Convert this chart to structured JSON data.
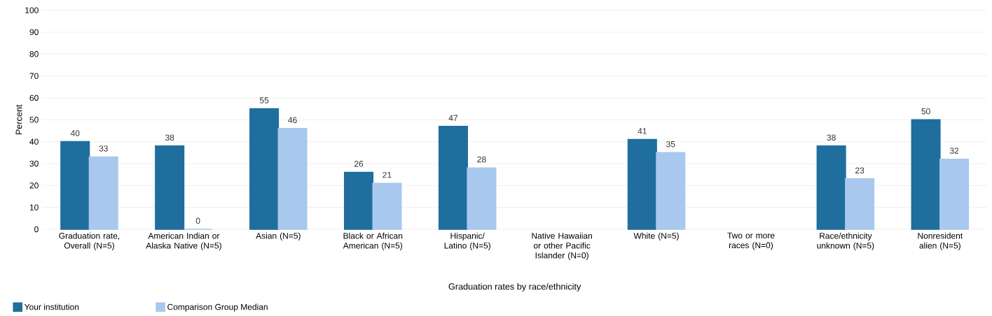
{
  "chart_data": {
    "type": "bar",
    "xlabel": "Graduation rates by race/ethnicity",
    "ylabel": "Percent",
    "categories": [
      "Graduation rate, Overall (N=5)",
      "American Indian or Alaska Native (N=5)",
      "Asian (N=5)",
      "Black or African American (N=5)",
      "Hispanic/ Latino (N=5)",
      "Native Hawaiian or other Pacific Islander (N=0)",
      "White (N=5)",
      "Two or more races (N=0)",
      "Race/ethnicity unknown (N=5)",
      "Nonresident alien (N=5)"
    ],
    "series": [
      {
        "name": "Your institution",
        "color": "#1f6e9e",
        "values": [
          40,
          38,
          55,
          26,
          47,
          null,
          41,
          null,
          38,
          50
        ]
      },
      {
        "name": "Comparison Group Median",
        "color": "#a8c8ee",
        "values": [
          33,
          0,
          46,
          21,
          28,
          null,
          35,
          null,
          23,
          32
        ]
      }
    ],
    "ylim": [
      0,
      100
    ],
    "yticks": [
      0,
      10,
      20,
      30,
      40,
      50,
      60,
      70,
      80,
      90,
      100
    ],
    "grid": "y",
    "legend": "bottom left",
    "data_labels": true
  }
}
